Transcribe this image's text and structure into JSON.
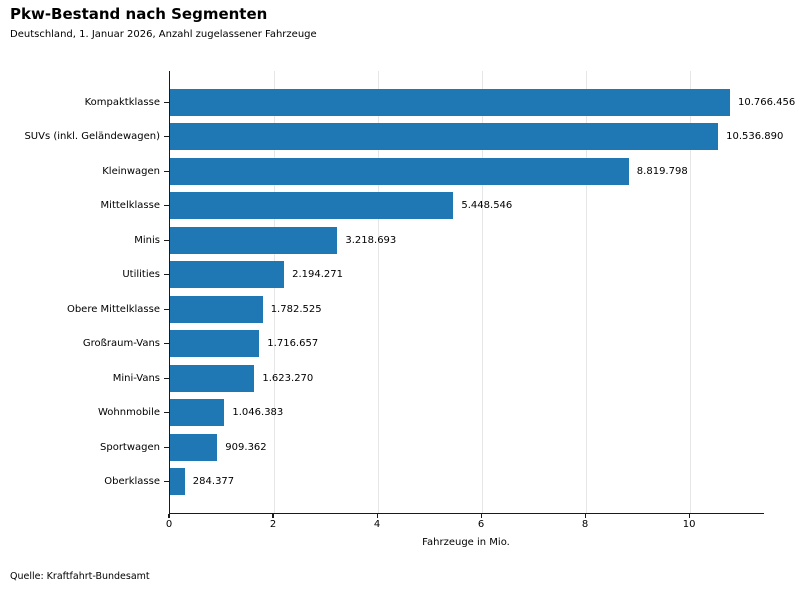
{
  "chart_data": {
    "type": "bar",
    "orientation": "horizontal",
    "title": "Pkw-Bestand nach Segmenten",
    "subtitle": "Deutschland, 1. Januar 2026, Anzahl zugelassener Fahrzeuge",
    "xlabel": "Fahrzeuge in Mio.",
    "categories": [
      "Kompaktklasse",
      "SUVs (inkl. Geländewagen)",
      "Kleinwagen",
      "Mittelklasse",
      "Minis",
      "Utilities",
      "Obere Mittelklasse",
      "Großraum-Vans",
      "Mini-Vans",
      "Wohnmobile",
      "Sportwagen",
      "Oberklasse"
    ],
    "values": [
      10766456,
      10536890,
      8819798,
      5448546,
      3218693,
      2194271,
      1782525,
      1716657,
      1623270,
      1046383,
      909362,
      284377
    ],
    "value_labels": [
      "10.766.456",
      "10.536.890",
      "8.819.798",
      "5.448.546",
      "3.218.693",
      "2.194.271",
      "1.782.525",
      "1.716.657",
      "1.623.270",
      "1.046.383",
      "909.362",
      "284.377"
    ],
    "value_unit_divisor": 1000000,
    "xticks": [
      0,
      2,
      4,
      6,
      8,
      10
    ],
    "xtick_labels": [
      "0",
      "2",
      "4",
      "6",
      "8",
      "10"
    ],
    "xlim": [
      0,
      11.42
    ],
    "grid": "vertical-only",
    "legend": null,
    "source": "Quelle: Kraftfahrt-Bundesamt",
    "colors": {
      "bar": "#1f77b4",
      "grid": "#e6e6e6",
      "spine": "#1a1a1a",
      "text": "#000000",
      "background": "#ffffff"
    }
  }
}
